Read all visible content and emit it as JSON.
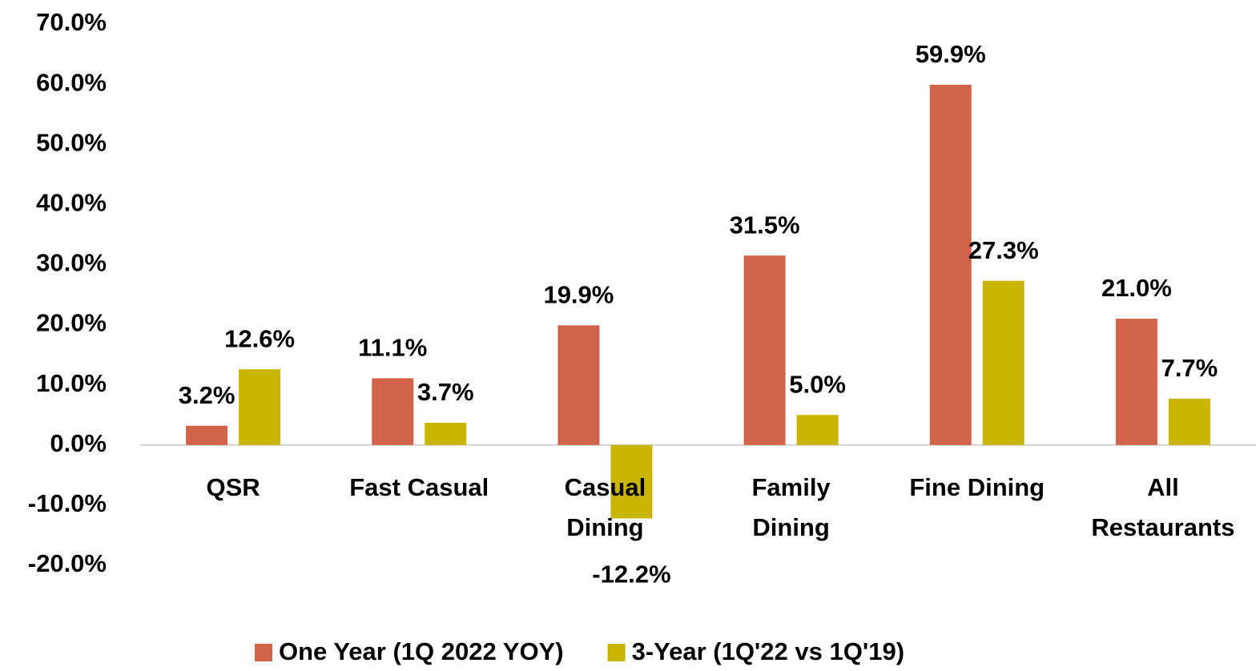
{
  "chart_data": {
    "type": "bar",
    "categories": [
      "QSR",
      "Fast Casual",
      "Casual\nDining",
      "Family\nDining",
      "Fine Dining",
      "All\nRestaurants"
    ],
    "series": [
      {
        "name": "One Year (1Q 2022 YOY)",
        "color": "#d0634a",
        "values": [
          3.2,
          11.1,
          19.9,
          31.5,
          59.9,
          21.0
        ],
        "value_labels": [
          "3.2%",
          "11.1%",
          "19.9%",
          "31.5%",
          "59.9%",
          "21.0%"
        ]
      },
      {
        "name": "3-Year (1Q'22 vs 1Q'19)",
        "color": "#c9b400",
        "values": [
          12.6,
          3.7,
          -12.2,
          5.0,
          27.3,
          7.7
        ],
        "value_labels": [
          "12.6%",
          "3.7%",
          "-12.2%",
          "5.0%",
          "27.3%",
          "7.7%"
        ]
      }
    ],
    "ylim": [
      -20,
      70
    ],
    "yticks": [
      {
        "value": -20,
        "label": "-20.0%"
      },
      {
        "value": -10,
        "label": "-10.0%"
      },
      {
        "value": 0,
        "label": "0.0%"
      },
      {
        "value": 10,
        "label": "10.0%"
      },
      {
        "value": 20,
        "label": "20.0%"
      },
      {
        "value": 30,
        "label": "30.0%"
      },
      {
        "value": 40,
        "label": "40.0%"
      },
      {
        "value": 50,
        "label": "50.0%"
      },
      {
        "value": 60,
        "label": "60.0%"
      },
      {
        "value": 70,
        "label": "70.0%"
      }
    ],
    "grid": false,
    "legend": "bottom"
  }
}
